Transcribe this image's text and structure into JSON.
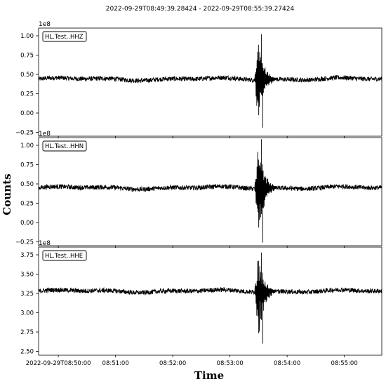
{
  "figure": {
    "title": "2022-09-29T08:49:39.28424  -  2022-09-29T08:55:39.27424"
  },
  "chart_data": [
    {
      "type": "line",
      "legend": "HL.Test..HHZ",
      "exponent_label": "1e8",
      "ylim": [
        -0.3,
        1.1
      ],
      "yticks": [
        1.0,
        0.75,
        0.5,
        0.25,
        0.0,
        -0.25
      ],
      "ytick_labels": [
        "1.00",
        "0.75",
        "0.50",
        "0.25",
        "0.00",
        "−0.25"
      ],
      "baseline": 0.44,
      "noise_amplitude": 0.05,
      "event_peak_max": 1.02,
      "event_peak_min": -0.19,
      "color": "#000000"
    },
    {
      "type": "line",
      "legend": "HL.Test..HHN",
      "exponent_label": "1e8",
      "ylim": [
        -0.3,
        1.1
      ],
      "yticks": [
        1.0,
        0.75,
        0.5,
        0.25,
        0.0,
        -0.25
      ],
      "ytick_labels": [
        "1.00",
        "0.75",
        "0.50",
        "0.25",
        "0.00",
        "−0.25"
      ],
      "baseline": 0.45,
      "noise_amplitude": 0.05,
      "event_peak_max": 1.08,
      "event_peak_min": -0.26,
      "color": "#000000"
    },
    {
      "type": "line",
      "legend": "HL.Test..HHE",
      "exponent_label": "1e8",
      "ylim": [
        2.45,
        3.85
      ],
      "yticks": [
        3.75,
        3.5,
        3.25,
        3.0,
        2.75,
        2.5
      ],
      "ytick_labels": [
        "3.75",
        "3.50",
        "3.25",
        "3.00",
        "2.75",
        "2.50"
      ],
      "baseline": 3.28,
      "noise_amplitude": 0.05,
      "event_peak_max": 3.78,
      "event_peak_min": 2.6,
      "color": "#000000"
    }
  ],
  "x_axis": {
    "label": "Time",
    "start": "2022-09-29T08:49:39.28424",
    "end": "2022-09-29T08:55:39.27424",
    "event_time": "2022-09-29T08:53:30",
    "ticks": [
      "2022-09-29T08:50:00",
      "08:51:00",
      "08:52:00",
      "08:53:00",
      "08:54:00",
      "08:55:00"
    ]
  },
  "y_axis": {
    "label": "Counts"
  }
}
